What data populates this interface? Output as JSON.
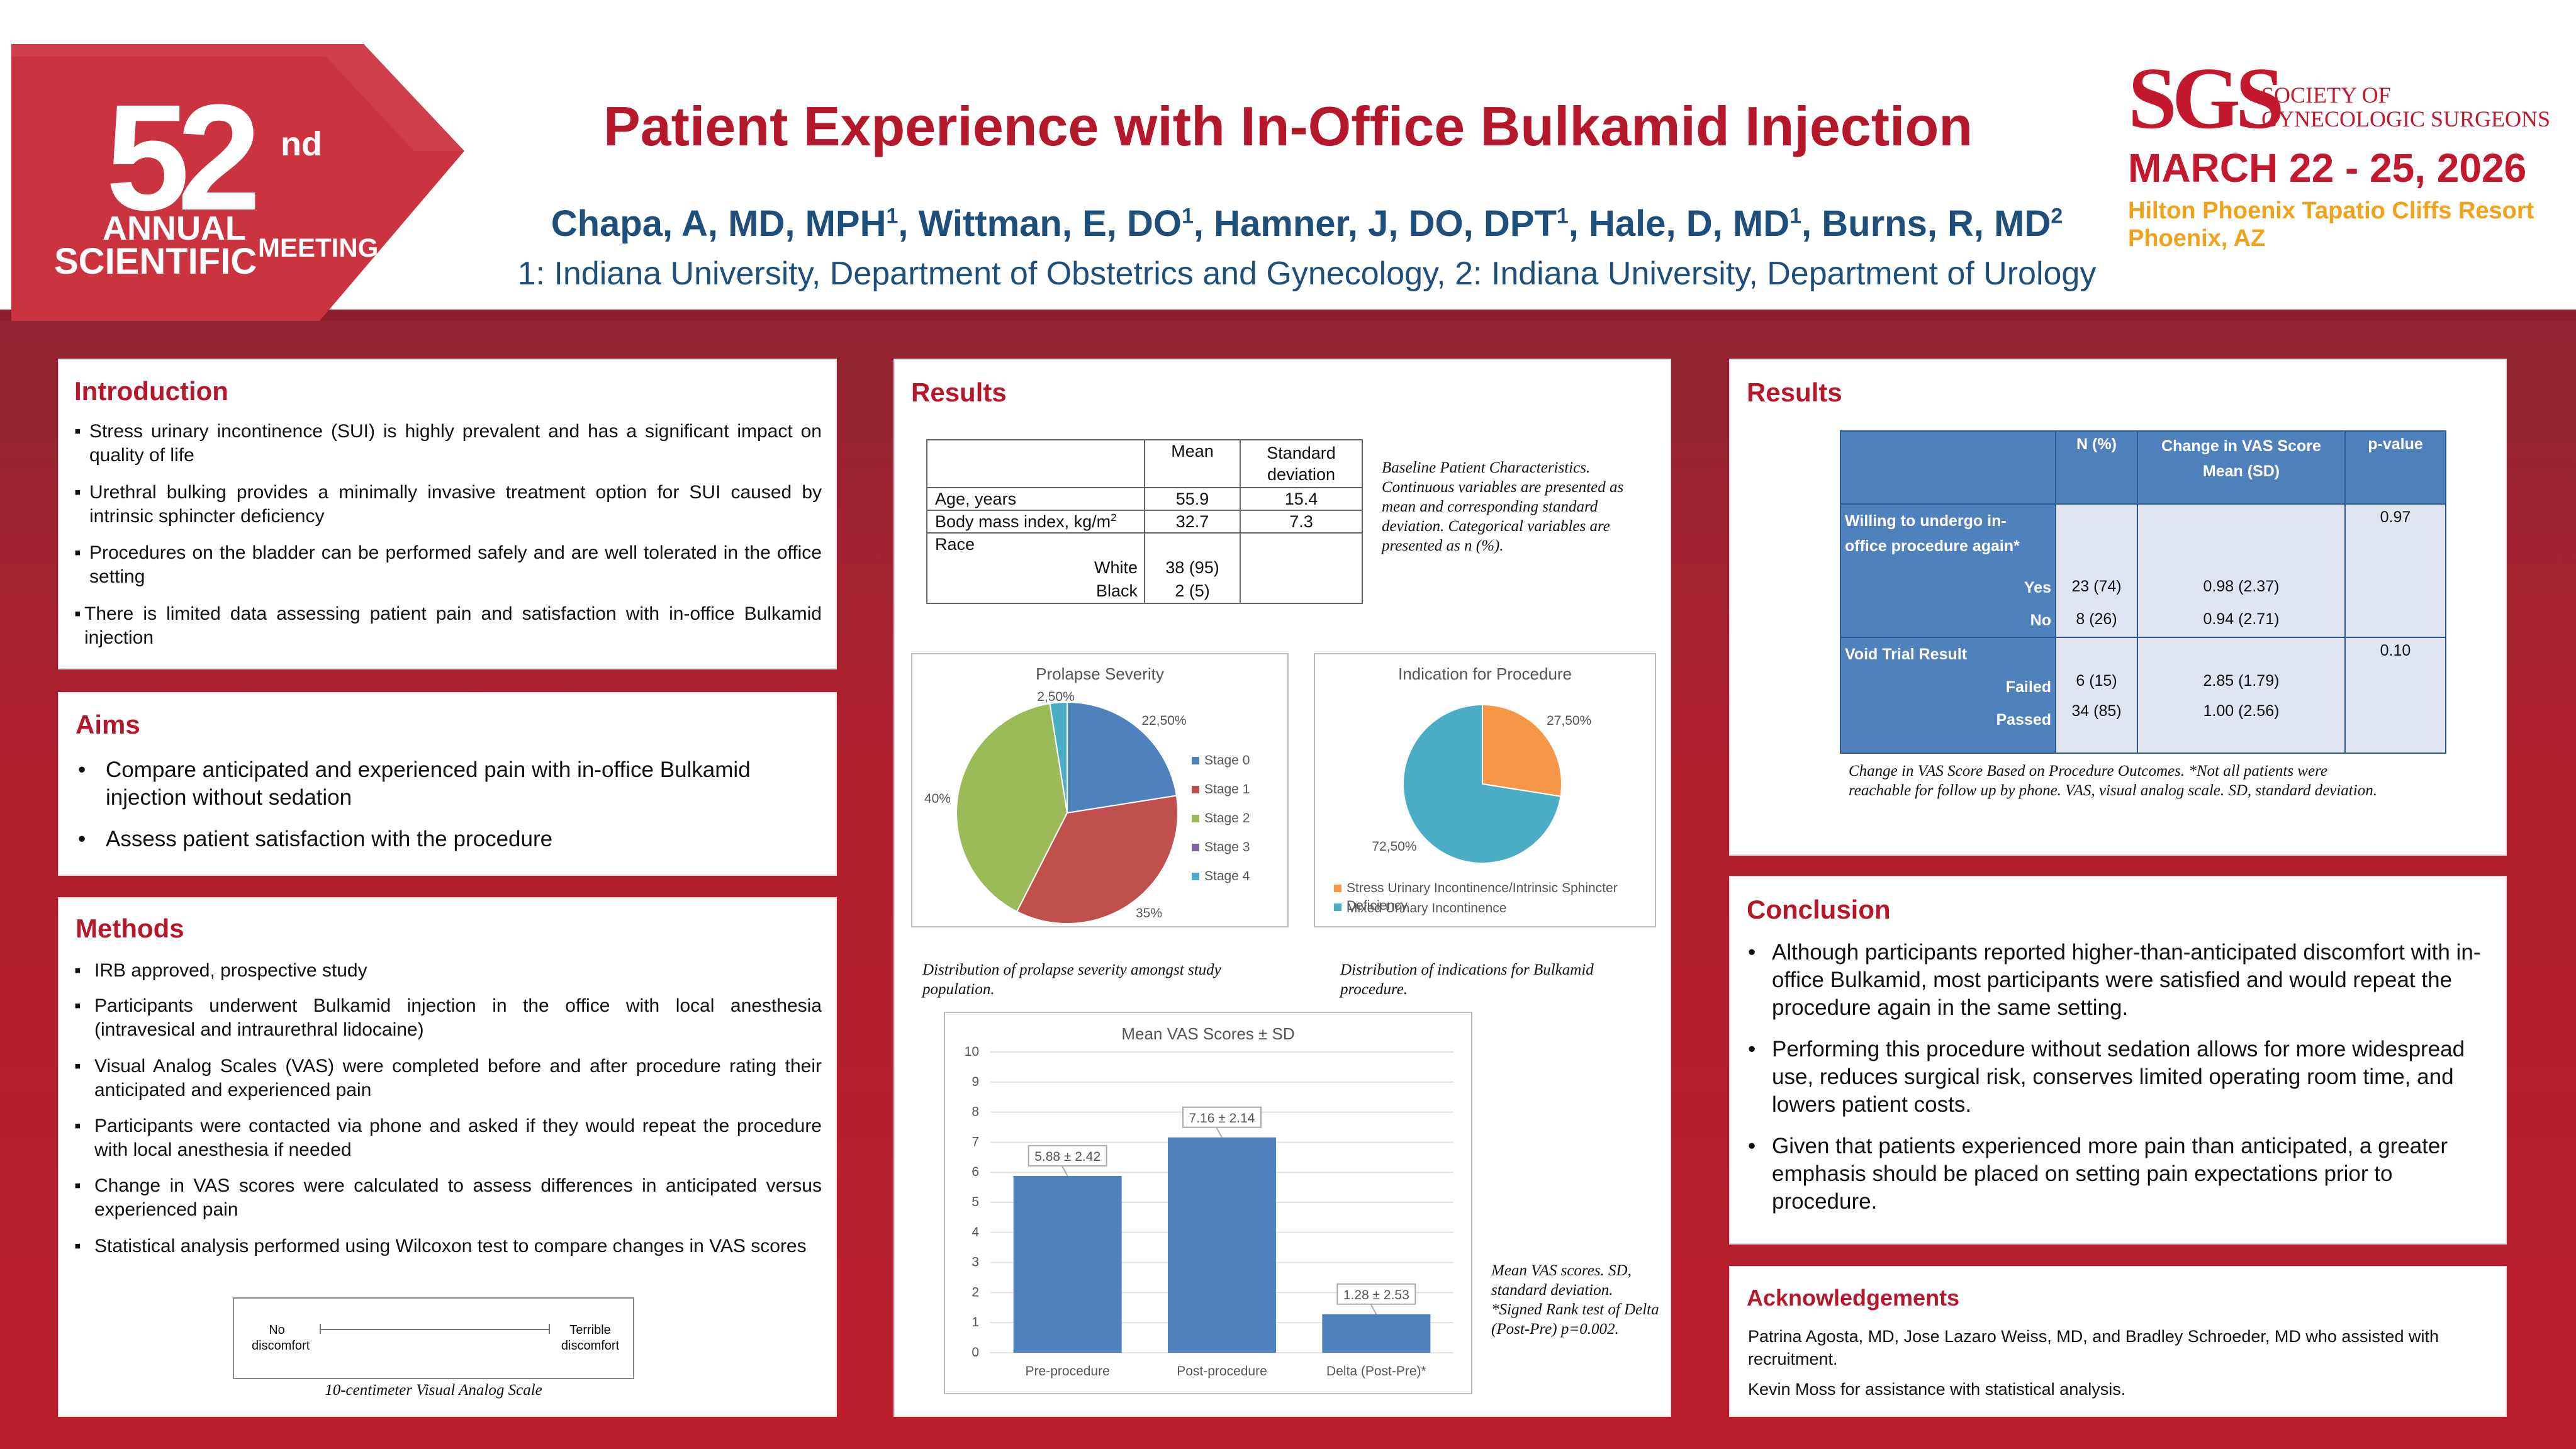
{
  "header": {
    "badge": {
      "number": "52",
      "suffix": "nd",
      "line1": "ANNUAL",
      "line2": "SCIENTIFIC",
      "line3": "MEETING"
    },
    "title": "Patient Experience with In-Office Bulkamid Injection",
    "authors": [
      {
        "name": "Chapa, A, MD, MPH",
        "sup": "1"
      },
      {
        "name": "Wittman, E, DO",
        "sup": "1"
      },
      {
        "name": "Hamner, J, DO, DPT",
        "sup": "1"
      },
      {
        "name": "Hale, D, MD",
        "sup": "1"
      },
      {
        "name": "Burns, R, MD",
        "sup": "2"
      }
    ],
    "affiliations": "1: Indiana University, Department of Obstetrics and Gynecology, 2: Indiana University, Department of Urology",
    "sgs": {
      "logo": "SGS",
      "org_line1": "SOCIETY OF",
      "org_line2": "GYNECOLOGIC SURGEONS",
      "dates": "MARCH 22 - 25, 2026",
      "venue": "Hilton Phoenix Tapatio Cliffs Resort",
      "city": "Phoenix, AZ"
    }
  },
  "introduction": {
    "heading": "Introduction",
    "bullets": [
      "Stress urinary incontinence (SUI) is highly prevalent and has a significant impact on quality of life",
      "Urethral bulking provides a minimally invasive treatment option for SUI caused by intrinsic sphincter deficiency",
      "Procedures on the bladder can be performed safely and are well tolerated in the office setting",
      "There is limited data assessing patient pain and satisfaction with in-office Bulkamid injection"
    ]
  },
  "aims": {
    "heading": "Aims",
    "bullets": [
      "Compare anticipated and experienced pain with in-office Bulkamid injection without sedation",
      "Assess patient satisfaction with the procedure"
    ]
  },
  "methods": {
    "heading": "Methods",
    "bullets": [
      "IRB approved, prospective study",
      "Participants underwent Bulkamid injection in the office with local anesthesia (intravesical and intraurethral lidocaine)",
      "Visual Analog Scales (VAS) were completed before and after procedure rating their anticipated and experienced pain",
      "Participants were contacted via phone and asked if they would repeat the procedure with local anesthesia if needed",
      "Change in VAS scores were calculated to assess differences in anticipated versus experienced pain",
      "Statistical analysis performed using Wilcoxon test to compare changes in VAS scores"
    ],
    "vas": {
      "left_l1": "No",
      "left_l2": "discomfort",
      "right_l1": "Terrible",
      "right_l2": "discomfort",
      "caption": "10-centimeter Visual Analog Scale"
    }
  },
  "results1": {
    "heading": "Results",
    "baseline": {
      "col_mean": "Mean",
      "col_sd_l1": "Standard",
      "col_sd_l2": "deviation",
      "rows": [
        {
          "label": "Age, years",
          "mean": "55.9",
          "sd": "15.4"
        },
        {
          "label": "Body mass index, kg/m",
          "sup": "2",
          "mean": "32.7",
          "sd": "7.3"
        }
      ],
      "race_label": "Race",
      "race": [
        {
          "label": "White",
          "value": "38 (95)"
        },
        {
          "label": "Black",
          "value": "2 (5)"
        }
      ],
      "caption": "Baseline Patient Characteristics. Continuous variables are presented as mean and corresponding standard deviation. Categorical variables are presented as n (%)."
    },
    "prolapse_caption": "Distribution of prolapse severity amongst study population.",
    "indication_caption": "Distribution of indications for Bulkamid procedure.",
    "vas_caption": "Mean VAS scores. SD, standard deviation. *Signed Rank test of Delta (Post-Pre) p=0.002."
  },
  "results2": {
    "heading": "Results",
    "table": {
      "col_n": "N (%)",
      "col_change_l1": "Change in VAS Score",
      "col_change_l2": "Mean (SD)",
      "col_p": "p-value",
      "group1": {
        "label_l1": "Willing to undergo in-",
        "label_l2": "office procedure again*",
        "p": "0.97",
        "rows": [
          {
            "label": "Yes",
            "n": "23 (74)",
            "change": "0.98 (2.37)"
          },
          {
            "label": "No",
            "n": "8 (26)",
            "change": "0.94 (2.71)"
          }
        ]
      },
      "group2": {
        "label": "Void Trial Result",
        "p": "0.10",
        "rows": [
          {
            "label": "Failed",
            "n": "6 (15)",
            "change": "2.85 (1.79)"
          },
          {
            "label": "Passed",
            "n": "34 (85)",
            "change": "1.00 (2.56)"
          }
        ]
      }
    },
    "caption": "Change in VAS Score Based on Procedure Outcomes. *Not all patients were reachable for follow up by phone. VAS, visual analog scale. SD, standard deviation."
  },
  "conclusion": {
    "heading": "Conclusion",
    "bullets": [
      "Although participants reported higher-than-anticipated discomfort with in-office Bulkamid, most participants were satisfied and would repeat the procedure again in the same setting.",
      "Performing this procedure without sedation allows for more widespread use, reduces surgical risk, conserves limited operating room time, and lowers patient costs.",
      "Given that patients experienced more pain than anticipated, a greater emphasis should be placed on setting pain expectations prior to procedure."
    ]
  },
  "acknowledgements": {
    "heading": "Acknowledgements",
    "p1": "Patrina Agosta, MD, Jose Lazaro Weiss, MD, and Bradley Schroeder, MD who assisted with recruitment.",
    "p2": "Kevin Moss for assistance with statistical analysis."
  },
  "chart_data": [
    {
      "type": "pie",
      "title": "Prolapse Severity",
      "categories": [
        "Stage 0",
        "Stage 1",
        "Stage 2",
        "Stage 3",
        "Stage 4"
      ],
      "values": [
        22.5,
        35,
        40,
        0,
        2.5
      ],
      "labels": [
        "22,50%",
        "35%",
        "40%",
        "",
        "2,50%"
      ],
      "colors": [
        "#4f81bd",
        "#c0504d",
        "#9bbb59",
        "#8064a2",
        "#4bacc6"
      ],
      "legend": "right"
    },
    {
      "type": "pie",
      "title": "Indication for Procedure",
      "categories": [
        "Stress Urinary Incontinence/Intrinsic Sphincter Deficiency",
        "Mixed Urinary Incontinence"
      ],
      "values": [
        27.5,
        72.5
      ],
      "labels": [
        "27,50%",
        "72,50%"
      ],
      "colors": [
        "#f79646",
        "#4bacc6"
      ],
      "legend": "bottom"
    },
    {
      "type": "bar",
      "title": "Mean VAS Scores ± SD",
      "categories": [
        "Pre-procedure",
        "Post-procedure",
        "Delta (Post-Pre)*"
      ],
      "values": [
        5.88,
        7.16,
        1.28
      ],
      "data_labels": [
        "5.88 ± 2.42",
        "7.16 ± 2.14",
        "1.28 ± 2.53"
      ],
      "ylim": [
        0,
        10
      ],
      "yticks": [
        "0",
        "1",
        "2",
        "3",
        "4",
        "5",
        "6",
        "7",
        "8",
        "9",
        "10"
      ],
      "color": "#4f81bd"
    }
  ]
}
